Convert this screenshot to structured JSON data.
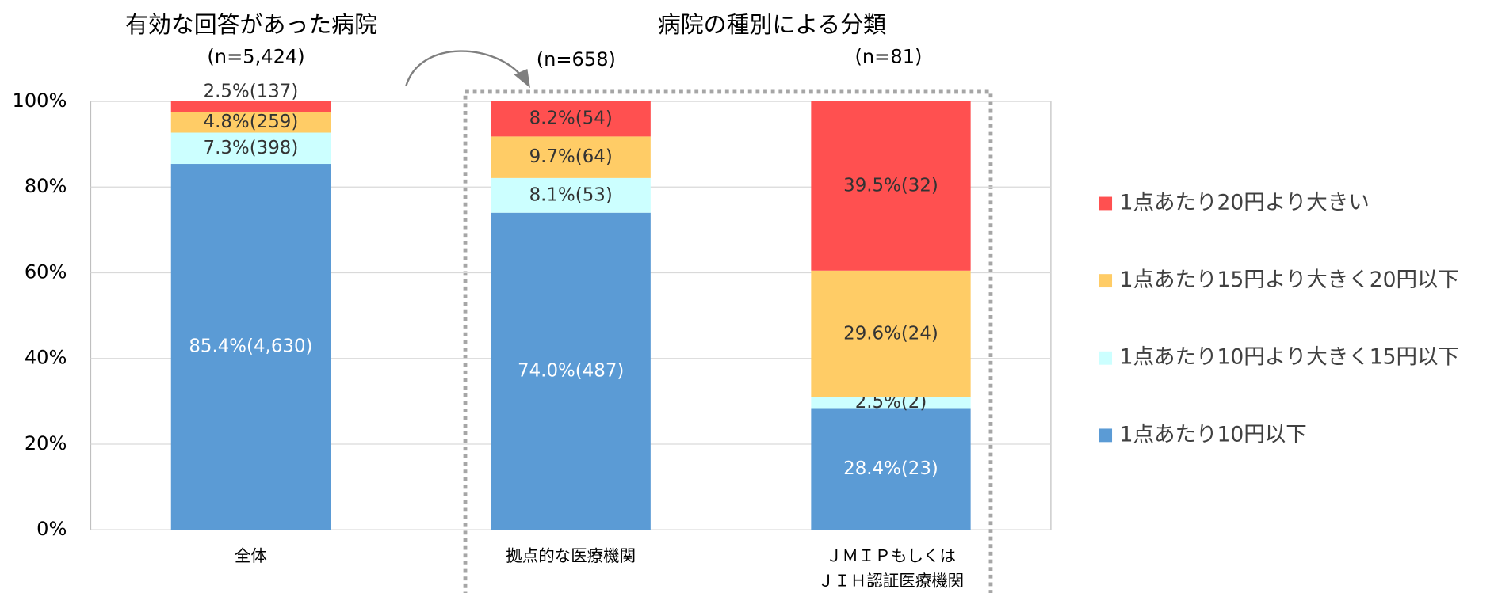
{
  "chart_data": {
    "type": "stacked_bar",
    "titles": [
      "有効な回答があった病院",
      "病院の種別による分類"
    ],
    "n_labels": [
      "(n=5,424)",
      "(n=658)",
      "(n=81)"
    ],
    "categories": [
      [
        "全体"
      ],
      [
        "拠点的な医療機関"
      ],
      [
        "ＪＭＩＰもしくは",
        "ＪＩＨ認証医療機関"
      ]
    ],
    "ylim": [
      0,
      100
    ],
    "yticks": [
      {
        "value": 0,
        "label": "0%"
      },
      {
        "value": 20,
        "label": "20%"
      },
      {
        "value": 40,
        "label": "40%"
      },
      {
        "value": 60,
        "label": "60%"
      },
      {
        "value": 80,
        "label": "80%"
      },
      {
        "value": 100,
        "label": "100%"
      }
    ],
    "grid": true,
    "legend": "right",
    "series": [
      {
        "name": "1点あたり10円以下",
        "color": "#5b9bd5",
        "values": [
          85.4,
          74.0,
          28.4
        ],
        "value_labels": [
          "85.4%(4,630)",
          "74.0%(487)",
          "28.4%(23)"
        ]
      },
      {
        "name": "1点あたり10円より大きく15円以下",
        "color": "#ccffff",
        "values": [
          7.3,
          8.1,
          2.5
        ],
        "value_labels": [
          "7.3%(398)",
          "8.1%(53)",
          "2.5%(2)"
        ]
      },
      {
        "name": "1点あたり15円より大きく20円以下",
        "color": "#ffcc66",
        "values": [
          4.8,
          9.7,
          29.6
        ],
        "value_labels": [
          "4.8%(259)",
          "9.7%(64)",
          "29.6%(24)"
        ]
      },
      {
        "name": "1点あたり20円より大きい",
        "color": "#ff5050",
        "values": [
          2.5,
          8.2,
          39.5
        ],
        "value_labels": [
          "2.5%(137)",
          "8.2%(54)",
          "39.5%(32)"
        ]
      }
    ]
  }
}
